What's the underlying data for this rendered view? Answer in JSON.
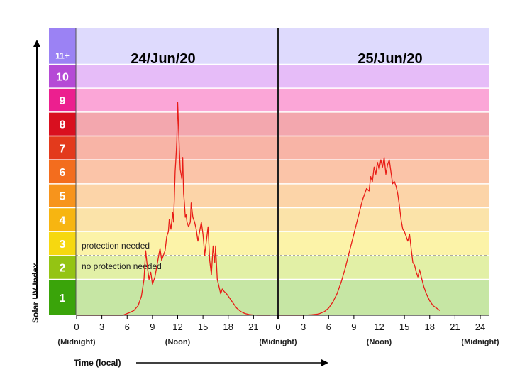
{
  "chart_data": {
    "type": "line",
    "ylabel": "Solar UV Index",
    "xlabel": "Time (local)",
    "ylim": [
      0,
      12
    ],
    "uv_bands": [
      {
        "label": "1",
        "from": 0,
        "to": 1.5,
        "swatch": "#3aa40a",
        "band": "#c6e6a4"
      },
      {
        "label": "2",
        "from": 1.5,
        "to": 2.5,
        "swatch": "#94c413",
        "band": "#e2f0a6"
      },
      {
        "label": "3",
        "from": 2.5,
        "to": 3.5,
        "swatch": "#f6d810",
        "band": "#fcf3a8"
      },
      {
        "label": "4",
        "from": 3.5,
        "to": 4.5,
        "swatch": "#f7b511",
        "band": "#fbe3a9"
      },
      {
        "label": "5",
        "from": 4.5,
        "to": 5.5,
        "swatch": "#f7941c",
        "band": "#fcd4a8"
      },
      {
        "label": "6",
        "from": 5.5,
        "to": 6.5,
        "swatch": "#f36d1e",
        "band": "#fbc4a8"
      },
      {
        "label": "7",
        "from": 6.5,
        "to": 7.5,
        "swatch": "#e33a1c",
        "band": "#f8b4a6"
      },
      {
        "label": "8",
        "from": 7.5,
        "to": 8.5,
        "swatch": "#d90f1f",
        "band": "#f3a7ae"
      },
      {
        "label": "9",
        "from": 8.5,
        "to": 9.5,
        "swatch": "#ec1f8f",
        "band": "#fba6d7"
      },
      {
        "label": "10",
        "from": 9.5,
        "to": 10.5,
        "swatch": "#b54ad6",
        "band": "#e6bcf8"
      },
      {
        "label": "11+",
        "from": 10.5,
        "to": 12,
        "swatch": "#9b82f4",
        "band": "#dedafd"
      }
    ],
    "threshold": {
      "value": 2.5,
      "above_label": "protection needed",
      "below_label": "no protection needed"
    },
    "days": [
      {
        "date": "24/Jun/20",
        "x_ticks": [
          "0",
          "3",
          "6",
          "9",
          "12",
          "15",
          "18",
          "21"
        ],
        "x_ticks_hours": [
          0,
          3,
          6,
          9,
          12,
          15,
          18,
          21
        ],
        "markers": [
          {
            "hour": 0,
            "label": "(Midnight)"
          },
          {
            "hour": 12,
            "label": "(Noon)"
          }
        ],
        "series": [
          {
            "x": [
              0,
              5.5,
              6.2,
              6.8,
              7.3,
              7.7,
              8.0,
              8.2,
              8.4,
              8.6,
              8.8,
              9.0,
              9.3,
              9.6,
              9.9,
              10.1,
              10.3,
              10.5,
              10.7,
              10.9,
              11.0,
              11.2,
              11.4,
              11.5,
              11.6,
              11.7,
              11.8,
              11.9,
              12.0,
              12.1,
              12.2,
              12.3,
              12.4,
              12.5,
              12.6,
              12.7,
              12.8,
              12.9,
              13.0,
              13.1,
              13.3,
              13.5,
              13.6,
              13.8,
              14.0,
              14.2,
              14.4,
              14.6,
              14.8,
              15.0,
              15.1,
              15.2,
              15.4,
              15.6,
              15.8,
              16.0,
              16.2,
              16.4,
              16.5,
              16.7,
              16.9,
              17.1,
              17.3,
              17.5,
              17.8,
              18.2,
              18.6,
              19.0,
              19.5,
              20.0,
              20.5,
              21.0,
              21.5,
              22.0,
              22.5,
              23.0
            ],
            "y": [
              0,
              0,
              0.1,
              0.2,
              0.4,
              0.8,
              1.5,
              2.7,
              2.0,
              1.5,
              1.8,
              1.3,
              1.6,
              2.2,
              2.8,
              2.3,
              2.5,
              2.7,
              3.3,
              3.5,
              4.0,
              3.6,
              4.3,
              3.9,
              4.9,
              6.0,
              6.6,
              7.3,
              8.9,
              7.9,
              6.9,
              6.1,
              5.9,
              5.7,
              6.6,
              5.1,
              4.7,
              4.1,
              4.2,
              3.9,
              3.7,
              3.9,
              4.7,
              4.1,
              3.9,
              3.6,
              3.1,
              3.5,
              3.9,
              3.4,
              3.0,
              2.5,
              3.1,
              3.7,
              2.3,
              1.7,
              2.9,
              2.2,
              2.9,
              1.5,
              1.2,
              0.9,
              1.1,
              1.0,
              0.9,
              0.7,
              0.5,
              0.3,
              0.15,
              0.07,
              0.03,
              0.01,
              0,
              0,
              0,
              0
            ]
          }
        ]
      },
      {
        "date": "25/Jun/20",
        "x_ticks": [
          "0",
          "3",
          "6",
          "9",
          "12",
          "15",
          "18",
          "21",
          "24"
        ],
        "x_ticks_hours": [
          0,
          3,
          6,
          9,
          12,
          15,
          18,
          21,
          24
        ],
        "markers": [
          {
            "hour": 0,
            "label": "(Midnight)"
          },
          {
            "hour": 12,
            "label": "(Noon)"
          },
          {
            "hour": 24,
            "label": "(Midnight)"
          }
        ],
        "series": [
          {
            "x": [
              0,
              3.0,
              4.0,
              4.8,
              5.5,
              6.0,
              6.5,
              7.0,
              7.5,
              8.0,
              8.5,
              9.0,
              9.5,
              10.0,
              10.5,
              10.8,
              11.0,
              11.2,
              11.4,
              11.6,
              11.8,
              12.0,
              12.2,
              12.4,
              12.6,
              12.8,
              13.0,
              13.2,
              13.4,
              13.6,
              13.8,
              14.0,
              14.2,
              14.4,
              14.6,
              14.8,
              15.0,
              15.2,
              15.4,
              15.6,
              15.8,
              16.0,
              16.2,
              16.4,
              16.6,
              16.8,
              17.0,
              17.3,
              17.6,
              18.0,
              18.4,
              18.8,
              19.2
            ],
            "y": [
              0,
              0,
              0.02,
              0.05,
              0.15,
              0.3,
              0.55,
              0.9,
              1.4,
              2.0,
              2.7,
              3.4,
              4.1,
              4.8,
              5.3,
              5.2,
              5.8,
              5.6,
              6.2,
              5.9,
              6.4,
              6.1,
              6.5,
              6.2,
              6.6,
              5.9,
              6.3,
              6.5,
              6.0,
              5.5,
              5.6,
              5.4,
              5.1,
              4.6,
              4.0,
              3.6,
              3.5,
              3.3,
              3.1,
              3.4,
              2.8,
              2.2,
              2.1,
              1.8,
              1.6,
              1.9,
              1.6,
              1.2,
              0.9,
              0.6,
              0.4,
              0.3,
              0.2
            ]
          }
        ]
      }
    ],
    "colors": {
      "line": "#e81d17",
      "divider": "#1f1f1f",
      "grid": "#ffffff",
      "threshold_line": "#7a7a7a"
    }
  }
}
